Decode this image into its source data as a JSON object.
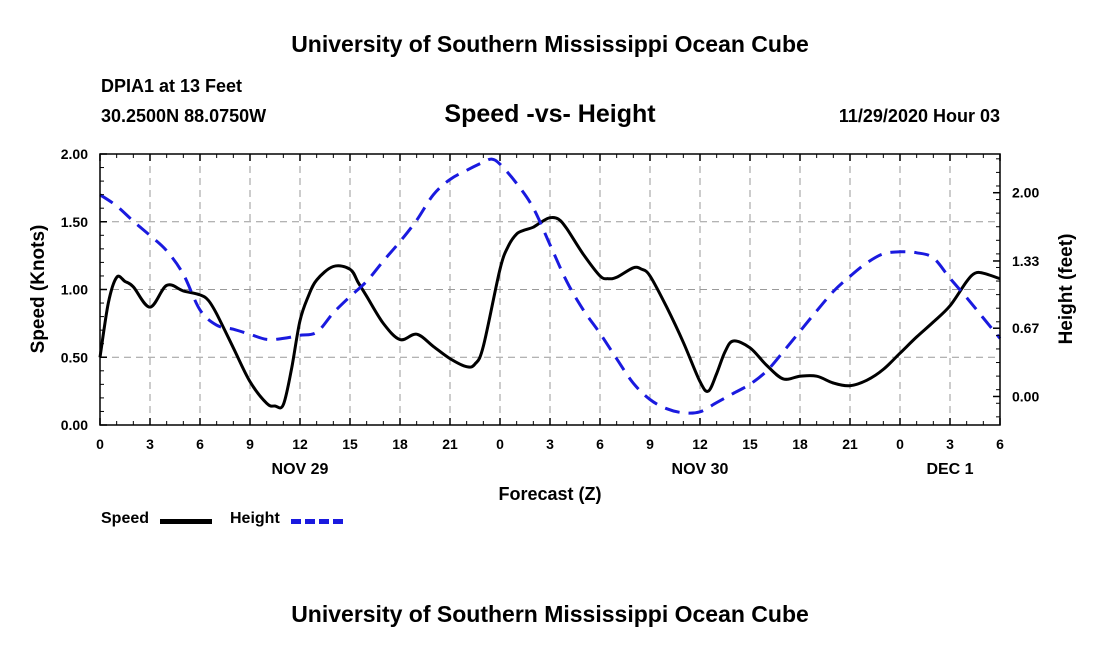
{
  "page": {
    "top_title": "University of Southern Mississippi Ocean Cube",
    "bottom_title": "University of Southern Mississippi Ocean Cube",
    "station": "DPIA1 at 13 Feet",
    "coords": "30.2500N 88.0750W",
    "datetime": "11/29/2020 Hour 03"
  },
  "colors": {
    "speed": "#000000",
    "height": "#1a1adf",
    "grid": "#9a9a9a"
  },
  "chart_data": {
    "type": "line",
    "title": "Speed -vs- Height",
    "xlabel": "Forecast (Z)",
    "ylabel": "Speed (Knots)",
    "y2label": "Height (feet)",
    "ylim": [
      0,
      2
    ],
    "y2lim": [
      -0.28,
      2.38
    ],
    "xlim": [
      0,
      54
    ],
    "x_ticks": [
      0,
      3,
      6,
      9,
      12,
      15,
      18,
      21,
      24,
      27,
      30,
      33,
      36,
      39,
      42,
      45,
      48,
      51,
      54
    ],
    "x_tick_labels": [
      "0",
      "3",
      "6",
      "9",
      "12",
      "15",
      "18",
      "21",
      "0",
      "3",
      "6",
      "9",
      "12",
      "15",
      "18",
      "21",
      "0",
      "3",
      "6"
    ],
    "y_ticks": [
      0,
      0.5,
      1.0,
      1.5,
      2.0
    ],
    "y_tick_labels": [
      "0.00",
      "0.50",
      "1.00",
      "1.50",
      "2.00"
    ],
    "y2_ticks": [
      0,
      0.67,
      1.33,
      2.0
    ],
    "y2_tick_labels": [
      "0.00",
      "0.67",
      "1.33",
      "2.00"
    ],
    "date_labels": [
      {
        "x": 12,
        "label": "NOV 29"
      },
      {
        "x": 36,
        "label": "NOV 30"
      },
      {
        "x": 51,
        "label": "DEC 1"
      }
    ],
    "series": [
      {
        "name": "Speed",
        "axis": "left",
        "style": "solid",
        "x": [
          0,
          0.5,
          1,
          1.5,
          2,
          3,
          4,
          5,
          6,
          6.5,
          7,
          8,
          9,
          10,
          10.5,
          11,
          11.5,
          12,
          12.5,
          13,
          14,
          15,
          15.5,
          16,
          17,
          18,
          19,
          20,
          21,
          22,
          22.5,
          23,
          24,
          24.5,
          25,
          25.5,
          26,
          26.5,
          27,
          27.5,
          28,
          29,
          30,
          30.5,
          31,
          32,
          32.5,
          33,
          34,
          35,
          36,
          36.5,
          37,
          37.5,
          38,
          39,
          40,
          41,
          42,
          43,
          44,
          45,
          46,
          47,
          48,
          49,
          50,
          51,
          52,
          52.5,
          53,
          54
        ],
        "values": [
          0.5,
          0.9,
          1.09,
          1.06,
          1.02,
          0.87,
          1.03,
          0.99,
          0.96,
          0.92,
          0.82,
          0.57,
          0.32,
          0.16,
          0.14,
          0.15,
          0.42,
          0.77,
          0.95,
          1.07,
          1.17,
          1.15,
          1.05,
          0.95,
          0.75,
          0.63,
          0.67,
          0.58,
          0.49,
          0.43,
          0.45,
          0.58,
          1.15,
          1.32,
          1.41,
          1.44,
          1.46,
          1.5,
          1.53,
          1.52,
          1.45,
          1.26,
          1.1,
          1.08,
          1.09,
          1.16,
          1.15,
          1.1,
          0.87,
          0.61,
          0.32,
          0.25,
          0.38,
          0.54,
          0.62,
          0.57,
          0.44,
          0.34,
          0.36,
          0.36,
          0.31,
          0.29,
          0.33,
          0.41,
          0.53,
          0.65,
          0.76,
          0.88,
          1.06,
          1.12,
          1.12,
          1.08
        ]
      },
      {
        "name": "Height",
        "axis": "right",
        "style": "dashed",
        "x": [
          0,
          1,
          2,
          3,
          4,
          5,
          6,
          7,
          8,
          9,
          10,
          11,
          12,
          13,
          14,
          15,
          16,
          17,
          18,
          19,
          20,
          21,
          22,
          23,
          23.5,
          24,
          25,
          26,
          27,
          28,
          29,
          30,
          31,
          32,
          33,
          34,
          35,
          36,
          37,
          38,
          39,
          40,
          41,
          42,
          43,
          44,
          45,
          46,
          47,
          48,
          49,
          50,
          51,
          52,
          53,
          54
        ],
        "values": [
          1.98,
          1.87,
          1.72,
          1.58,
          1.43,
          1.2,
          0.85,
          0.7,
          0.66,
          0.61,
          0.56,
          0.57,
          0.6,
          0.63,
          0.82,
          0.98,
          1.13,
          1.33,
          1.52,
          1.73,
          1.98,
          2.13,
          2.22,
          2.3,
          2.33,
          2.28,
          2.09,
          1.85,
          1.49,
          1.13,
          0.85,
          0.62,
          0.37,
          0.13,
          -0.03,
          -0.12,
          -0.16,
          -0.15,
          -0.06,
          0.03,
          0.12,
          0.25,
          0.44,
          0.64,
          0.84,
          1.03,
          1.18,
          1.31,
          1.4,
          1.42,
          1.41,
          1.36,
          1.16,
          0.97,
          0.77,
          0.57
        ]
      }
    ],
    "legend": [
      {
        "label": "Speed",
        "series": "Speed"
      },
      {
        "label": "Height",
        "series": "Height"
      }
    ],
    "legend_position": "bottom-left"
  }
}
